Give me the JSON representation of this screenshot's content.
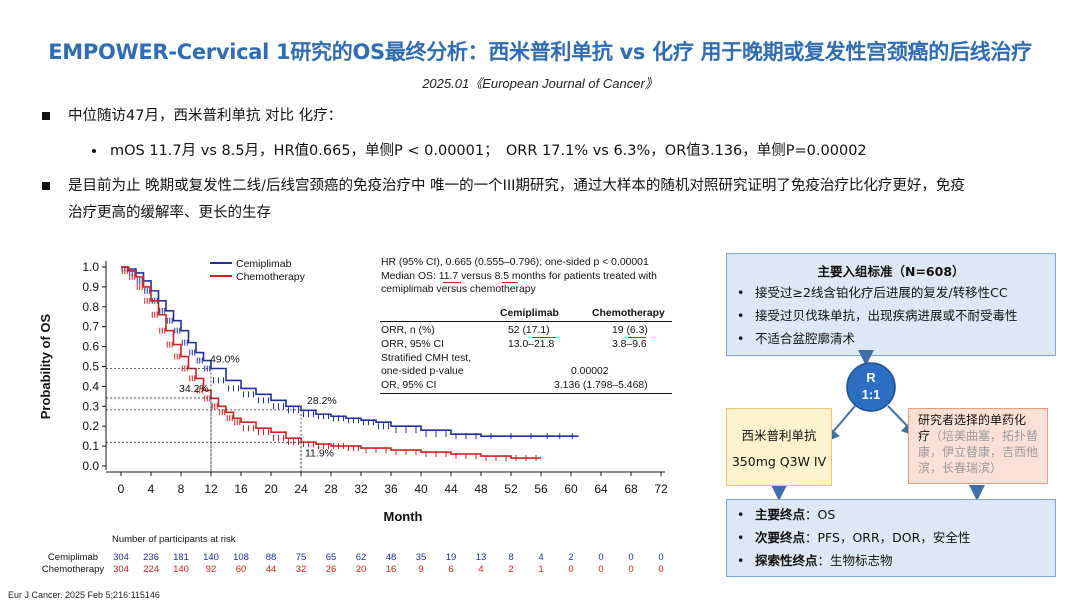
{
  "title": "EMPOWER-Cervical 1研究的OS最终分析：西米普利单抗 vs 化疗 用于晚期或复发性宫颈癌的后线治疗",
  "subtitle": "2025.01《European Journal of Cancer》",
  "bullets": {
    "b1": "中位随访47月，西米普利单抗 对比 化疗：",
    "b1_sub": "mOS 11.7月 vs 8.5月，HR值0.665，单侧P < 0.00001；　ORR 17.1% vs 6.3%，OR值3.136，单侧P=0.00002",
    "b2_line1": "是目前为止 晚期或复发性二线/后线宫颈癌的免疫治疗中 唯一的一个III期研究，通过大样本的随机对照研究证明了免疫治疗比化疗更好，免疫",
    "b2_line2": "治疗更高的缓解率、更长的生存"
  },
  "stats": {
    "hr_line": "HR (95% CI), 0.665 (0.555–0.796); one-sided p < 0.00001",
    "median_l1": "Median OS: 11.7 versus 8.5 months for patients treated with",
    "median_l2": "cemiplimab versus chemotherapy",
    "col_cemi": "Cemiplimab",
    "col_chemo": "Chemotherapy",
    "orr_label": "ORR, n (%)",
    "orr_cemi": "52 (17.1)",
    "orr_chemo": "19 (6.3)",
    "ci_label": "ORR, 95% CI",
    "ci_cemi": "13.0–21.8",
    "ci_chemo": "3.8–9.6",
    "cmh_l1": "Stratified CMH test,",
    "cmh_l2": "one-sided p-value",
    "cmh_val": "0.00002",
    "or_label": "OR, 95% CI",
    "or_val": "3.136 (1.798–5.468)"
  },
  "risk_table": {
    "title": "Number of participants at risk",
    "rows": [
      {
        "name": "Cemiplimab",
        "color": "#1f2fa8",
        "values": [
          "304",
          "236",
          "181",
          "140",
          "108",
          "88",
          "75",
          "65",
          "62",
          "48",
          "35",
          "19",
          "13",
          "8",
          "4",
          "2",
          "0",
          "0",
          "0"
        ]
      },
      {
        "name": "Chemotherapy",
        "color": "#d62020",
        "values": [
          "304",
          "224",
          "140",
          "92",
          "60",
          "44",
          "32",
          "26",
          "20",
          "16",
          "9",
          "6",
          "4",
          "2",
          "1",
          "0",
          "0",
          "0",
          "0"
        ]
      }
    ]
  },
  "footer": "Eur J Cancer. 2025 Feb 5;216:115146",
  "design": {
    "inclusion": {
      "title": "主要入组标准（N=608）",
      "items": [
        "接受过≥2线含铂化疗后进展的复发/转移性CC",
        "接受过贝伐珠单抗，出现疾病进展或不耐受毒性",
        "不适合盆腔廓清术"
      ]
    },
    "randomization_l1": "R",
    "randomization_l2": "1:1",
    "arm1_l1": "西米普利单抗",
    "arm1_l2": "350mg Q3W IV",
    "arm2_l1": "研究者选择的单药化",
    "arm2_l2": "疗",
    "arm2_detail": "（培美曲塞，拓扑替康，伊立替康，吉西他滨，长春瑞滨）",
    "endpoints": [
      {
        "label": "主要终点",
        "value": "：OS"
      },
      {
        "label": "次要终点",
        "value": "：PFS，ORR，DOR，安全性"
      },
      {
        "label": "探索性终点",
        "value": "：生物标志物"
      }
    ]
  },
  "chart_data": {
    "type": "line",
    "title": "",
    "xlabel": "Month",
    "ylabel": "Probability of OS",
    "xlim": [
      0,
      72
    ],
    "ylim": [
      0,
      1.0
    ],
    "xticks": [
      0,
      4,
      8,
      12,
      16,
      20,
      24,
      28,
      32,
      36,
      40,
      44,
      48,
      52,
      56,
      60,
      64,
      68,
      72
    ],
    "yticks": [
      "0.0",
      "0.1",
      "0.2",
      "0.3",
      "0.4",
      "0.5",
      "0.6",
      "0.7",
      "0.8",
      "0.9",
      "1.0"
    ],
    "grid": false,
    "legend": "top",
    "series": [
      {
        "name": "Cemiplimab",
        "color": "#1f2fa8",
        "x": [
          0,
          1,
          2,
          3,
          4,
          5,
          6,
          7,
          8,
          9,
          10,
          11,
          12,
          14,
          16,
          18,
          20,
          22,
          24,
          26,
          28,
          30,
          32,
          34,
          36,
          40,
          44,
          48,
          56,
          61
        ],
        "y": [
          1.0,
          0.99,
          0.97,
          0.93,
          0.88,
          0.83,
          0.78,
          0.73,
          0.68,
          0.62,
          0.57,
          0.53,
          0.49,
          0.43,
          0.39,
          0.36,
          0.33,
          0.3,
          0.28,
          0.26,
          0.25,
          0.24,
          0.23,
          0.22,
          0.2,
          0.18,
          0.16,
          0.15,
          0.15,
          0.15
        ]
      },
      {
        "name": "Chemotherapy",
        "color": "#d62020",
        "x": [
          0,
          1,
          2,
          3,
          4,
          5,
          6,
          7,
          8,
          9,
          10,
          11,
          12,
          13,
          14,
          15,
          16,
          18,
          20,
          22,
          24,
          26,
          28,
          30,
          32,
          36,
          40,
          44,
          48,
          52,
          56
        ],
        "y": [
          1.0,
          0.98,
          0.95,
          0.9,
          0.83,
          0.76,
          0.68,
          0.61,
          0.55,
          0.49,
          0.44,
          0.38,
          0.34,
          0.3,
          0.27,
          0.24,
          0.22,
          0.19,
          0.17,
          0.14,
          0.12,
          0.11,
          0.1,
          0.1,
          0.09,
          0.08,
          0.07,
          0.06,
          0.05,
          0.04,
          0.04
        ]
      }
    ],
    "annotations": [
      {
        "text": "49.0%",
        "x": 12,
        "y": 0.49
      },
      {
        "text": "34.2%",
        "x": 12,
        "y": 0.342
      },
      {
        "text": "28.2%",
        "x": 24,
        "y": 0.282
      },
      {
        "text": "11.9%",
        "x": 24,
        "y": 0.119
      }
    ],
    "risk_x": [
      0,
      4,
      8,
      12,
      16,
      20,
      24,
      28,
      32,
      36,
      40,
      44,
      48,
      52,
      56,
      60,
      64,
      68,
      72
    ]
  }
}
